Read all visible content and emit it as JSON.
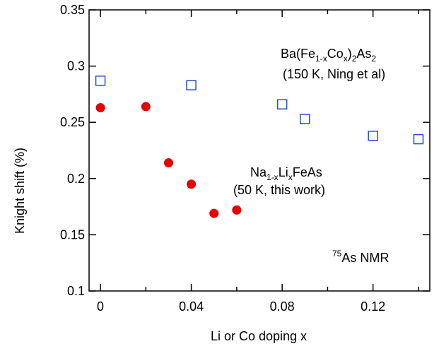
{
  "chart_data": {
    "type": "scatter",
    "title": "",
    "xlabel": "Li or Co doping x",
    "ylabel": "Knight shift (%)",
    "xlim": [
      -0.005,
      0.145
    ],
    "ylim": [
      0.1,
      0.35
    ],
    "x_ticks": [
      0,
      0.04,
      0.08,
      0.12
    ],
    "x_tick_labels": [
      "0",
      "0.04",
      "0.08",
      "0.12"
    ],
    "y_ticks": [
      0.1,
      0.15,
      0.2,
      0.25,
      0.3,
      0.35
    ],
    "y_tick_labels": [
      "0.1",
      "0.15",
      "0.2",
      "0.25",
      "0.3",
      "0.35"
    ],
    "grid": false,
    "series": [
      {
        "name": "Ba(Fe1-xCox)2As2 (150 K, Ning et al)",
        "marker": "open-square",
        "color": "#1f4fc8",
        "points": [
          {
            "x": 0.0,
            "y": 0.287
          },
          {
            "x": 0.04,
            "y": 0.283
          },
          {
            "x": 0.08,
            "y": 0.266
          },
          {
            "x": 0.09,
            "y": 0.253
          },
          {
            "x": 0.12,
            "y": 0.238
          },
          {
            "x": 0.14,
            "y": 0.235
          }
        ]
      },
      {
        "name": "Na1-xLixFeAs (50 K, this work)",
        "marker": "filled-circle",
        "color": "#e60000",
        "points": [
          {
            "x": 0.0,
            "y": 0.263
          },
          {
            "x": 0.02,
            "y": 0.264
          },
          {
            "x": 0.03,
            "y": 0.214
          },
          {
            "x": 0.04,
            "y": 0.195
          },
          {
            "x": 0.05,
            "y": 0.169
          },
          {
            "x": 0.06,
            "y": 0.172
          }
        ]
      }
    ],
    "annotations": {
      "ba_line1": {
        "base1": "Ba(Fe",
        "sub1": "1-x",
        "base2": "Co",
        "sub2": "x",
        "base3": ")",
        "sub3": "2",
        "base4": "As",
        "sub4": "2"
      },
      "ba_line2": "(150 K, Ning et al)",
      "na_line1": {
        "base1": "Na",
        "sub1": "1-x",
        "base2": "Li",
        "sub2": "x",
        "base3": "FeAs"
      },
      "na_line2": "(50 K, this work)",
      "nmr": {
        "sup": "75",
        "text": "As NMR"
      }
    }
  }
}
